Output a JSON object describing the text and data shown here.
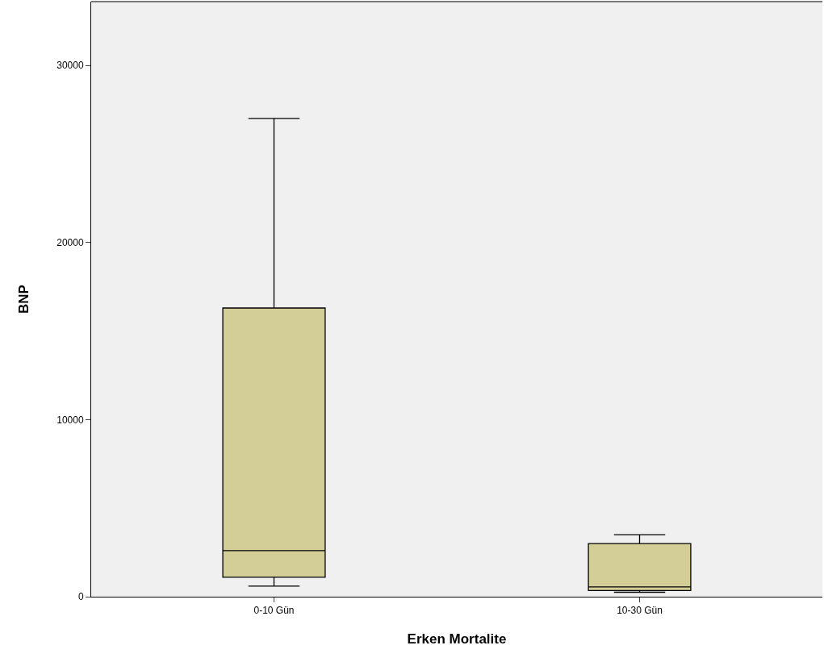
{
  "chart_data": {
    "type": "box",
    "xlabel": "Erken Mortalite",
    "ylabel": "BNP",
    "categories": [
      "0-10 Gün",
      "10-30 Gün"
    ],
    "boxes": [
      {
        "low": 600,
        "q1": 1100,
        "median": 2600,
        "q3": 16300,
        "high": 27000
      },
      {
        "low": 250,
        "q1": 350,
        "median": 550,
        "q3": 3000,
        "high": 3500
      }
    ],
    "color": "#d3ce98",
    "ylim": [
      0,
      33600
    ],
    "yticks": [
      0,
      10000,
      20000,
      30000
    ],
    "grid": false
  }
}
